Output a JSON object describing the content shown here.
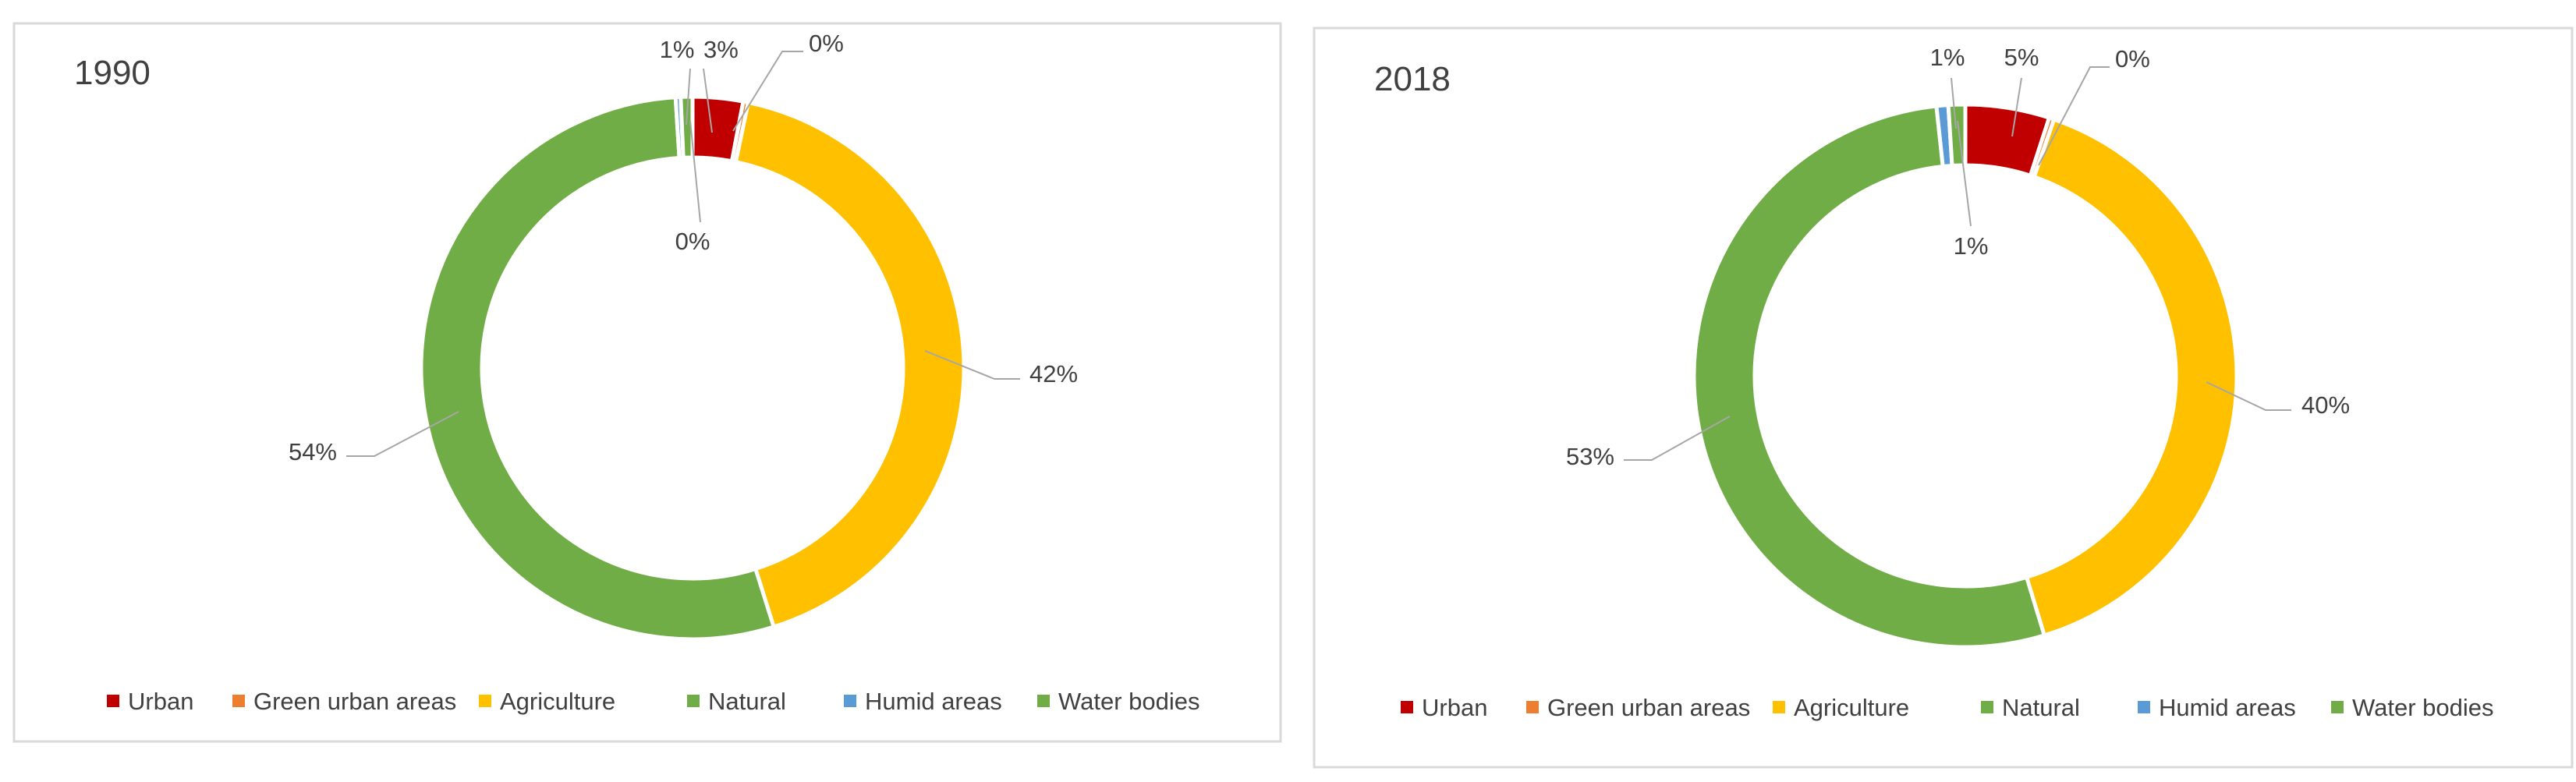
{
  "chart_data": [
    {
      "type": "donut",
      "title": "1990",
      "categories": [
        "Urban",
        "Green urban areas",
        "Agriculture",
        "Natural",
        "Humid areas",
        "Water bodies"
      ],
      "values": [
        3,
        0.3,
        42,
        54,
        0.3,
        0.7
      ],
      "data_labels": [
        "3%",
        "0%",
        "42%",
        "54%",
        "0%",
        "1%"
      ],
      "colors": [
        "#c00000",
        "#ed7d31",
        "#ffc000",
        "#70ad47",
        "#5b9bd5",
        "#70ad47"
      ],
      "legend_position": "bottom"
    },
    {
      "type": "donut",
      "title": "2018",
      "categories": [
        "Urban",
        "Green urban areas",
        "Agriculture",
        "Natural",
        "Humid areas",
        "Water bodies"
      ],
      "values": [
        5,
        0.3,
        40,
        53,
        0.7,
        1
      ],
      "data_labels": [
        "5%",
        "0%",
        "40%",
        "53%",
        "1%",
        "1%"
      ],
      "colors": [
        "#c00000",
        "#ed7d31",
        "#ffc000",
        "#70ad47",
        "#5b9bd5",
        "#70ad47"
      ],
      "legend_position": "bottom"
    }
  ]
}
